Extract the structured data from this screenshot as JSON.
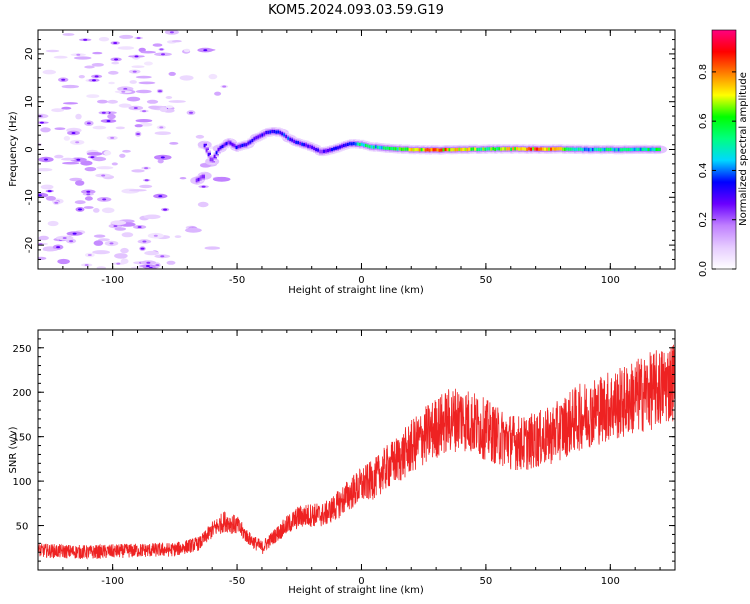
{
  "page": {
    "title": "KOM5.2024.093.03.59.G19"
  },
  "chart_data": [
    {
      "type": "heatmap",
      "title": "KOM5.2024.093.03.59.G19",
      "xlabel": "Height of straight line (km)",
      "ylabel": "Frequency (Hz)",
      "xlim": [
        -130,
        126
      ],
      "ylim": [
        -25,
        25
      ],
      "xticks": [
        -100,
        -50,
        0,
        50,
        100
      ],
      "yticks": [
        -20,
        -10,
        0,
        10,
        20
      ],
      "colorbar": {
        "label": "Normalized spectral amplitude",
        "range": [
          0,
          0.97
        ],
        "ticks": [
          0.0,
          0.2,
          0.4,
          0.6,
          0.8
        ],
        "colormap": [
          "#ffffff",
          "#e6ccff",
          "#c080ff",
          "#6a00ff",
          "#0000ff",
          "#00d8ff",
          "#00ff80",
          "#00ff00",
          "#ffff00",
          "#ff8000",
          "#ff0000",
          "#ff0080"
        ]
      },
      "ridge": [
        {
          "x": -66,
          "y": -6.5,
          "amp": 0.25
        },
        {
          "x": -63,
          "y": -5.5,
          "amp": 0.3
        },
        {
          "x": -60,
          "y": -2.5,
          "amp": 0.3
        },
        {
          "x": -57,
          "y": 0.2,
          "amp": 0.35
        },
        {
          "x": -63,
          "y": 1.0,
          "amp": 0.3
        },
        {
          "x": -53,
          "y": 1.5,
          "amp": 0.3
        },
        {
          "x": -50,
          "y": 0.5,
          "amp": 0.35
        },
        {
          "x": -46,
          "y": 1.0,
          "amp": 0.35
        },
        {
          "x": -42,
          "y": 2.5,
          "amp": 0.3
        },
        {
          "x": -38,
          "y": 3.5,
          "amp": 0.35
        },
        {
          "x": -35,
          "y": 3.8,
          "amp": 0.4
        },
        {
          "x": -32,
          "y": 3.5,
          "amp": 0.35
        },
        {
          "x": -29,
          "y": 2.3,
          "amp": 0.4
        },
        {
          "x": -26,
          "y": 1.5,
          "amp": 0.35
        },
        {
          "x": -22,
          "y": 0.9,
          "amp": 0.35
        },
        {
          "x": -19,
          "y": 0.3,
          "amp": 0.3
        },
        {
          "x": -16,
          "y": -0.5,
          "amp": 0.3
        },
        {
          "x": -12,
          "y": -0.1,
          "amp": 0.35
        },
        {
          "x": -8,
          "y": 0.6,
          "amp": 0.35
        },
        {
          "x": -4,
          "y": 1.2,
          "amp": 0.4
        },
        {
          "x": 0,
          "y": 1.1,
          "amp": 0.55
        },
        {
          "x": 4,
          "y": 0.6,
          "amp": 0.55
        },
        {
          "x": 8,
          "y": 0.4,
          "amp": 0.5
        },
        {
          "x": 12,
          "y": 0.2,
          "amp": 0.6
        },
        {
          "x": 20,
          "y": 0.0,
          "amp": 0.75
        },
        {
          "x": 30,
          "y": -0.1,
          "amp": 0.85
        },
        {
          "x": 40,
          "y": 0.0,
          "amp": 0.85
        },
        {
          "x": 50,
          "y": 0.1,
          "amp": 0.6
        },
        {
          "x": 60,
          "y": 0.1,
          "amp": 0.75
        },
        {
          "x": 70,
          "y": 0.1,
          "amp": 0.85
        },
        {
          "x": 80,
          "y": 0.1,
          "amp": 0.8
        },
        {
          "x": 90,
          "y": 0.0,
          "amp": 0.5
        },
        {
          "x": 100,
          "y": 0.0,
          "amp": 0.55
        },
        {
          "x": 110,
          "y": 0.0,
          "amp": 0.5
        },
        {
          "x": 120,
          "y": 0.0,
          "amp": 0.6
        }
      ]
    },
    {
      "type": "line",
      "xlabel": "Height of straight line (km)",
      "ylabel": "SNR (v/v)",
      "xlim": [
        -130,
        126
      ],
      "ylim": [
        0,
        270
      ],
      "xticks": [
        -100,
        -50,
        0,
        50,
        100
      ],
      "yticks": [
        50,
        100,
        150,
        200,
        250
      ],
      "line_color": "#ee2222",
      "series": [
        {
          "x": [
            -130,
            -110,
            -90,
            -75,
            -65,
            -60,
            -55,
            -50,
            -45,
            -40,
            -35,
            -30,
            -25,
            -20,
            -15,
            -10,
            -5,
            0,
            5,
            10,
            15,
            20,
            25,
            30,
            35,
            40,
            45,
            50,
            55,
            60,
            65,
            70,
            75,
            80,
            85,
            90,
            95,
            100,
            105,
            110,
            115,
            120,
            126
          ],
          "y": [
            22,
            20,
            22,
            23,
            30,
            45,
            55,
            50,
            35,
            25,
            38,
            50,
            60,
            62,
            62,
            72,
            85,
            95,
            102,
            115,
            125,
            138,
            150,
            160,
            168,
            172,
            165,
            158,
            150,
            145,
            142,
            146,
            150,
            158,
            168,
            175,
            180,
            185,
            188,
            195,
            200,
            205,
            215
          ]
        }
      ]
    }
  ]
}
